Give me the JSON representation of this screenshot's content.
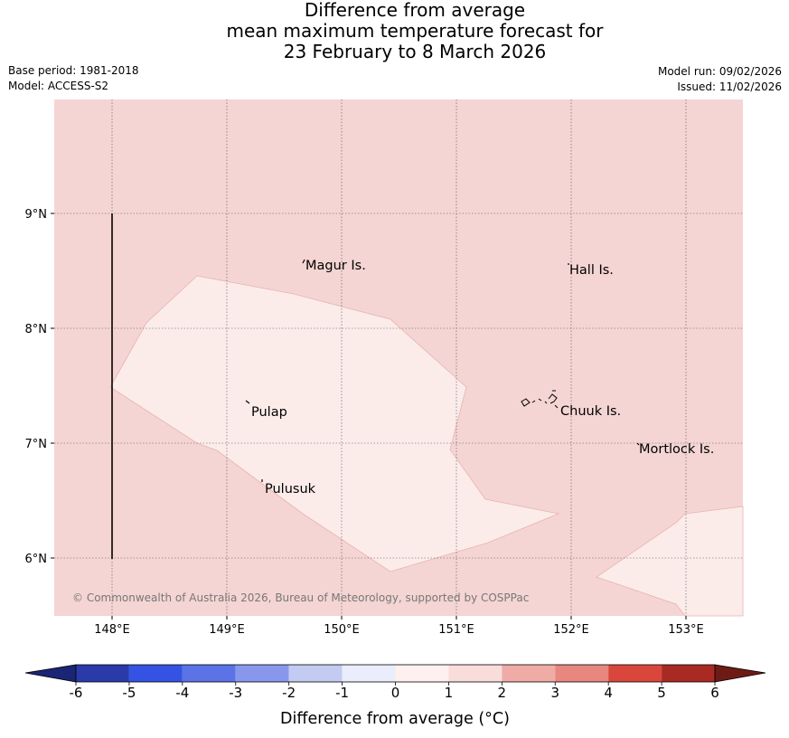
{
  "title": {
    "line1": "Difference from average",
    "line2": "mean maximum temperature forecast for",
    "line3": "23 February to 8 March 2026"
  },
  "meta": {
    "base_period": "Base period: 1981-2018",
    "model": "Model: ACCESS-S2",
    "model_run": "Model run: 09/02/2026",
    "issued": "Issued: 11/02/2026"
  },
  "map": {
    "lat_labels": [
      "9°N",
      "8°N",
      "7°N",
      "6°N"
    ],
    "lon_labels": [
      "148°E",
      "149°E",
      "150°E",
      "151°E",
      "152°E",
      "153°E"
    ],
    "places": [
      "Magur Is.",
      "Hall Is.",
      "Pulap",
      "Chuuk Is.",
      "Mortlock Is.",
      "Pulusuk"
    ],
    "copyright": "© Commonwealth of Australia 2026, Bureau of Meteorology, supported by COSPPac",
    "background_class_color": "#f4d5d3",
    "anomaly_region_color": "#fbecea"
  },
  "colorbar": {
    "title": "Difference from average (°C)",
    "labels": [
      "-6",
      "-5",
      "-4",
      "-3",
      "-2",
      "-1",
      "0",
      "1",
      "2",
      "3",
      "4",
      "5",
      "6"
    ],
    "colors": [
      "#2a3ba9",
      "#3553e3",
      "#5b73e6",
      "#8798ec",
      "#c3cbf3",
      "#eaedfb",
      "#fdf0ef",
      "#f8dddb",
      "#efaca7",
      "#e88680",
      "#d9473c",
      "#a82a22"
    ],
    "under_color": "#1a2575",
    "over_color": "#6e1b16"
  }
}
